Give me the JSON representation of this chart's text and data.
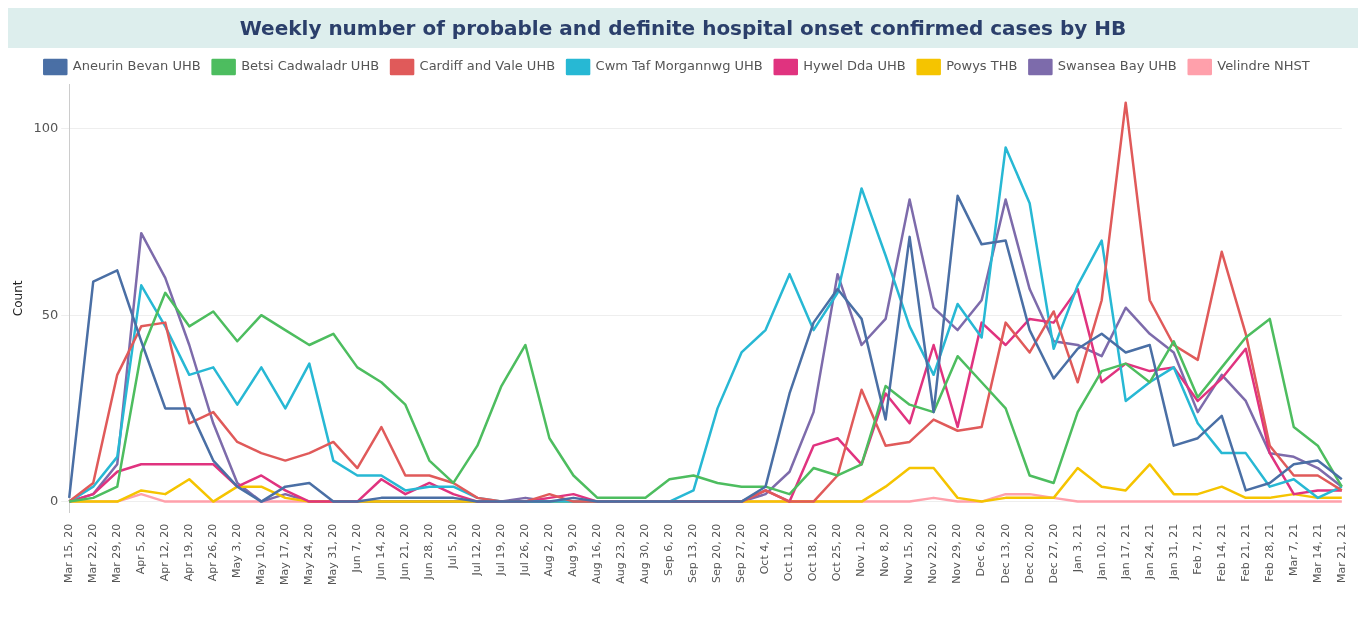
{
  "chart_data": {
    "type": "line",
    "title": "Weekly number of probable and definite hospital onset confirmed cases by HB",
    "ylabel": "Count",
    "categories": [
      "Mar 15, 20",
      "Mar 22, 20",
      "Mar 29, 20",
      "Apr 5, 20",
      "Apr 12, 20",
      "Apr 19, 20",
      "Apr 26, 20",
      "May 3, 20",
      "May 10, 20",
      "May 17, 20",
      "May 24, 20",
      "May 31, 20",
      "Jun 7, 20",
      "Jun 14, 20",
      "Jun 21, 20",
      "Jun 28, 20",
      "Jul 5, 20",
      "Jul 12, 20",
      "Jul 19, 20",
      "Jul 26, 20",
      "Aug 2, 20",
      "Aug 9, 20",
      "Aug 16, 20",
      "Aug 23, 20",
      "Aug 30, 20",
      "Sep 6, 20",
      "Sep 13, 20",
      "Sep 20, 20",
      "Sep 27, 20",
      "Oct 4, 20",
      "Oct 11, 20",
      "Oct 18, 20",
      "Oct 25, 20",
      "Nov 1, 20",
      "Nov 8, 20",
      "Nov 15, 20",
      "Nov 22, 20",
      "Nov 29, 20",
      "Dec 6, 20",
      "Dec 13, 20",
      "Dec 20, 20",
      "Dec 27, 20",
      "Jan 3, 21",
      "Jan 10, 21",
      "Jan 17, 21",
      "Jan 24, 21",
      "Jan 31, 21",
      "Feb 7, 21",
      "Feb 14, 21",
      "Feb 21, 21",
      "Feb 28, 21",
      "Mar 7, 21",
      "Mar 14, 21",
      "Mar 21, 21"
    ],
    "series": [
      {
        "name": "Aneurin Bevan UHB",
        "color": "#4a6fa5",
        "values": [
          1,
          59,
          62,
          43,
          25,
          25,
          11,
          4,
          0,
          4,
          5,
          0,
          0,
          1,
          1,
          1,
          1,
          0,
          0,
          0,
          0,
          1,
          0,
          0,
          0,
          0,
          0,
          0,
          0,
          4,
          29,
          48,
          57,
          49,
          22,
          71,
          24,
          82,
          69,
          70,
          46,
          33,
          41,
          45,
          40,
          42,
          15,
          17,
          23,
          3,
          5,
          10,
          11,
          6
        ]
      },
      {
        "name": "Betsi Cadwaladr UHB",
        "color": "#4dbd5f",
        "values": [
          0,
          1,
          4,
          40,
          56,
          47,
          51,
          43,
          50,
          46,
          42,
          45,
          36,
          32,
          26,
          11,
          5,
          15,
          31,
          42,
          17,
          7,
          1,
          1,
          1,
          6,
          7,
          5,
          4,
          4,
          2,
          9,
          7,
          10,
          31,
          26,
          24,
          39,
          32,
          25,
          7,
          5,
          24,
          35,
          37,
          32,
          43,
          28,
          36,
          44,
          49,
          20,
          15,
          4
        ]
      },
      {
        "name": "Cardiff and Vale UHB",
        "color": "#e05a5a",
        "values": [
          0,
          5,
          34,
          47,
          48,
          21,
          24,
          16,
          13,
          11,
          13,
          16,
          9,
          20,
          7,
          7,
          5,
          1,
          0,
          0,
          2,
          0,
          0,
          0,
          0,
          0,
          0,
          0,
          0,
          3,
          0,
          0,
          7,
          30,
          15,
          16,
          22,
          19,
          20,
          48,
          40,
          51,
          32,
          54,
          107,
          54,
          42,
          38,
          67,
          45,
          15,
          7,
          7,
          3
        ]
      },
      {
        "name": "Cwm Taf Morgannwg UHB",
        "color": "#27b8d4",
        "values": [
          0,
          4,
          12,
          58,
          47,
          34,
          36,
          26,
          36,
          25,
          37,
          11,
          7,
          7,
          3,
          4,
          4,
          1,
          0,
          0,
          0,
          0,
          0,
          0,
          0,
          0,
          3,
          25,
          40,
          46,
          61,
          46,
          56,
          84,
          66,
          47,
          34,
          53,
          44,
          95,
          80,
          41,
          58,
          70,
          27,
          32,
          36,
          21,
          13,
          13,
          4,
          6,
          1,
          4
        ]
      },
      {
        "name": "Hywel Dda UHB",
        "color": "#e0337f",
        "values": [
          0,
          2,
          8,
          10,
          10,
          10,
          10,
          4,
          7,
          3,
          0,
          0,
          0,
          6,
          2,
          5,
          2,
          0,
          0,
          0,
          1,
          2,
          0,
          0,
          0,
          0,
          0,
          0,
          0,
          3,
          0,
          15,
          17,
          10,
          29,
          21,
          42,
          20,
          48,
          42,
          49,
          48,
          57,
          32,
          37,
          35,
          36,
          27,
          33,
          41,
          13,
          2,
          3,
          3
        ]
      },
      {
        "name": "Powys THB",
        "color": "#f5c400",
        "values": [
          0,
          0,
          0,
          3,
          2,
          6,
          0,
          4,
          4,
          1,
          0,
          0,
          0,
          0,
          0,
          0,
          0,
          0,
          0,
          0,
          0,
          0,
          0,
          0,
          0,
          0,
          0,
          0,
          0,
          0,
          0,
          0,
          0,
          0,
          4,
          9,
          9,
          1,
          0,
          1,
          1,
          1,
          9,
          4,
          3,
          10,
          2,
          2,
          4,
          1,
          1,
          2,
          1,
          1
        ]
      },
      {
        "name": "Swansea Bay UHB",
        "color": "#7d6bab",
        "values": [
          0,
          2,
          10,
          72,
          60,
          42,
          21,
          5,
          0,
          2,
          0,
          0,
          0,
          0,
          0,
          0,
          0,
          0,
          0,
          1,
          0,
          0,
          0,
          0,
          0,
          0,
          0,
          0,
          0,
          2,
          8,
          24,
          61,
          42,
          49,
          81,
          52,
          46,
          54,
          81,
          57,
          43,
          42,
          39,
          52,
          45,
          40,
          24,
          34,
          27,
          13,
          12,
          9,
          4
        ]
      },
      {
        "name": "Velindre NHST",
        "color": "#ffa0ab",
        "values": [
          0,
          0,
          0,
          2,
          0,
          0,
          0,
          0,
          0,
          0,
          0,
          0,
          0,
          0,
          0,
          0,
          0,
          0,
          0,
          0,
          0,
          0,
          0,
          0,
          0,
          0,
          0,
          0,
          0,
          0,
          0,
          0,
          0,
          0,
          0,
          0,
          1,
          0,
          0,
          2,
          2,
          1,
          0,
          0,
          0,
          0,
          0,
          0,
          0,
          0,
          0,
          0,
          0,
          0
        ]
      }
    ],
    "ylim": [
      -3,
      112
    ],
    "yticks": [
      0,
      50,
      100
    ],
    "grid": "y",
    "legend": "top",
    "marker": "none",
    "line_style": "solid"
  }
}
